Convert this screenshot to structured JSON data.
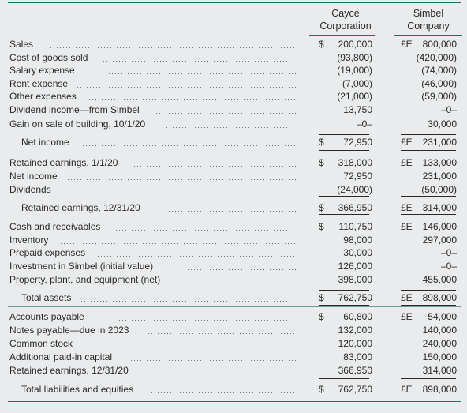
{
  "header": {
    "col1": "Cayce Corporation",
    "col1_line1": "Cayce",
    "col1_line2": "Corporation",
    "col2": "Simbel Company",
    "col2_line1": "Simbel",
    "col2_line2": "Company"
  },
  "rows": [
    {
      "label": "Sales",
      "c1_cur": "$",
      "c1": "200,000",
      "c2_cur": "£E",
      "c2": "800,000"
    },
    {
      "label": "Cost of goods sold",
      "c1": "(93,800)",
      "c2": "(420,000)"
    },
    {
      "label": "Salary expense",
      "c1": "(19,000)",
      "c2": "(74,000)"
    },
    {
      "label": "Rent expense",
      "c1": "(7,000)",
      "c2": "(46,000)"
    },
    {
      "label": "Other expenses",
      "c1": "(21,000)",
      "c2": "(59,000)"
    },
    {
      "label": "Dividend income—from Simbel",
      "c1": "13,750",
      "c2": "–0–"
    },
    {
      "label": "Gain on sale of building, 10/1/20",
      "c1": "–0–",
      "c2": "30,000"
    },
    {
      "label": "Net income",
      "indent": true,
      "c1_cur": "$",
      "c1": "72,950",
      "c2_cur": "£E",
      "c2": "231,000"
    },
    {
      "label": "Retained earnings, 1/1/20",
      "c1_cur": "$",
      "c1": "318,000",
      "c2_cur": "£E",
      "c2": "133,000"
    },
    {
      "label": "Net income",
      "c1": "72,950",
      "c2": "231,000"
    },
    {
      "label": "Dividends",
      "c1": "(24,000)",
      "c2": "(50,000)"
    },
    {
      "label": "Retained earnings, 12/31/20",
      "indent": true,
      "c1_cur": "$",
      "c1": "366,950",
      "c2_cur": "£E",
      "c2": "314,000"
    },
    {
      "label": "Cash and receivables",
      "c1_cur": "$",
      "c1": "110,750",
      "c2_cur": "£E",
      "c2": "146,000"
    },
    {
      "label": "Inventory",
      "c1": "98,000",
      "c2": "297,000"
    },
    {
      "label": "Prepaid expenses",
      "c1": "30,000",
      "c2": "–0–"
    },
    {
      "label": "Investment in Simbel (initial value)",
      "c1": "126,000",
      "c2": "–0–"
    },
    {
      "label": "Property, plant, and equipment (net)",
      "c1": "398,000",
      "c2": "455,000"
    },
    {
      "label": "Total assets",
      "indent": true,
      "c1_cur": "$",
      "c1": "762,750",
      "c2_cur": "£E",
      "c2": "898,000"
    },
    {
      "label": "Accounts payable",
      "c1_cur": "$",
      "c1": "60,800",
      "c2_cur": "£E",
      "c2": "54,000"
    },
    {
      "label": "Notes payable—due in 2023",
      "c1": "132,000",
      "c2": "140,000"
    },
    {
      "label": "Common stock",
      "c1": "120,000",
      "c2": "240,000"
    },
    {
      "label": "Additional paid-in capital",
      "c1": "83,000",
      "c2": "150,000"
    },
    {
      "label": "Retained earnings, 12/31/20",
      "c1": "366,950",
      "c2": "314,000"
    },
    {
      "label": "Total liabilities and equities",
      "indent": true,
      "c1_cur": "$",
      "c1": "762,750",
      "c2_cur": "£E",
      "c2": "898,000"
    }
  ]
}
